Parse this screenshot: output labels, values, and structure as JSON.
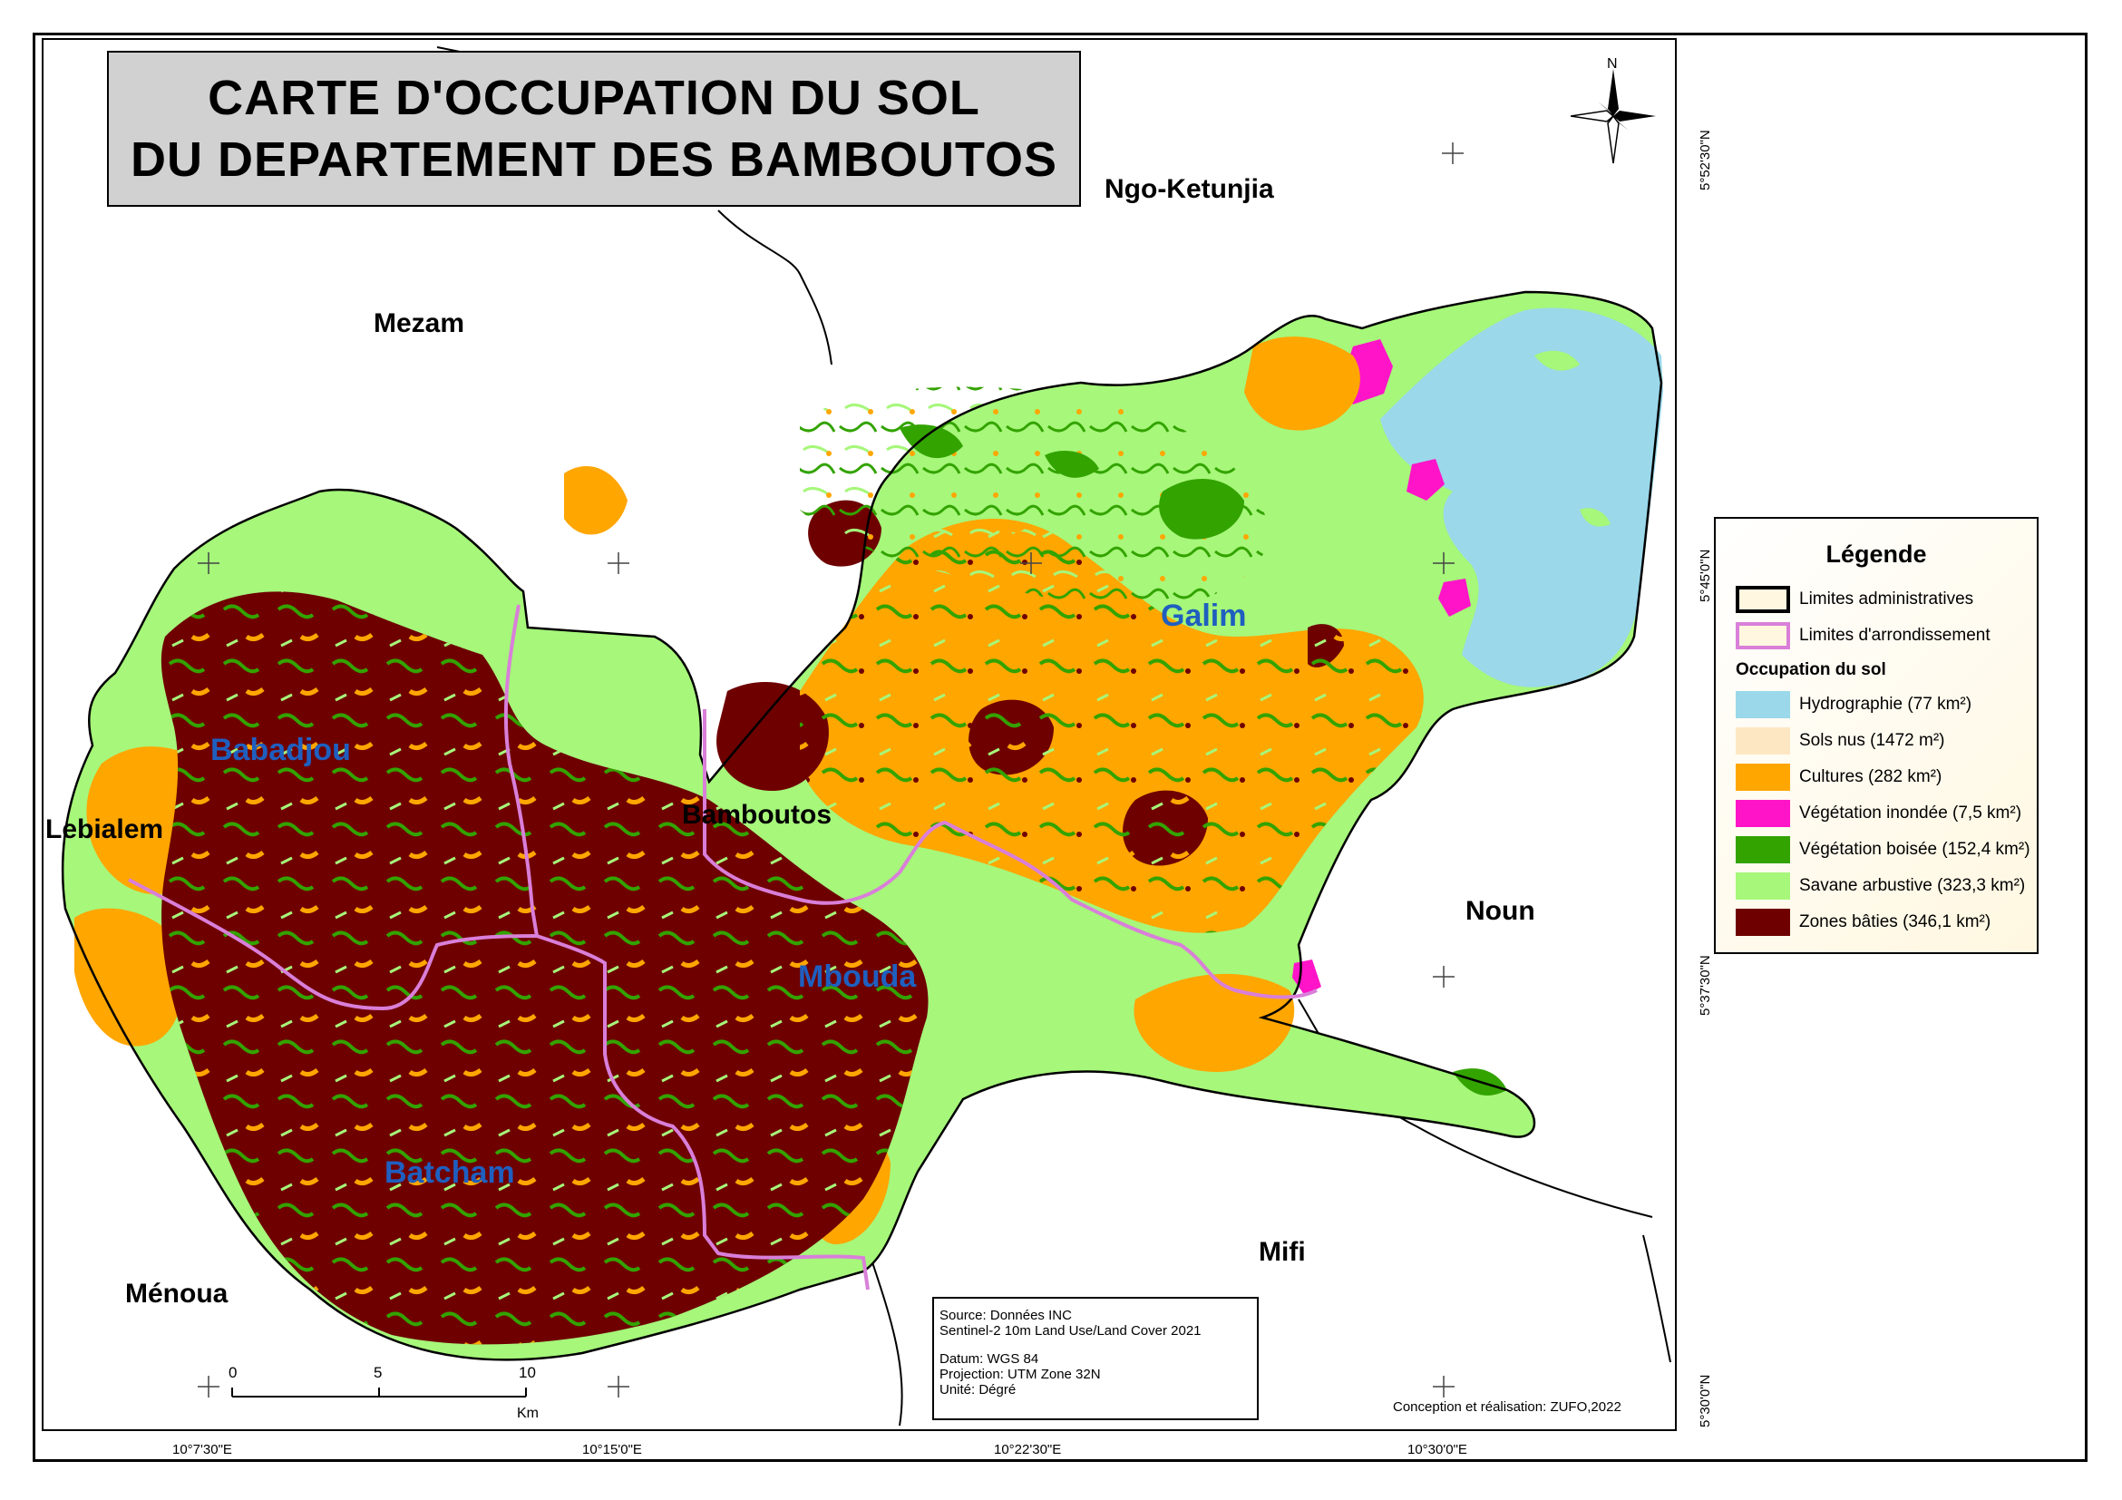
{
  "title": {
    "line1": "CARTE D'OCCUPATION DU SOL",
    "line2": "DU DEPARTEMENT DES BAMBOUTOS"
  },
  "departments": {
    "ngo_ketunjia": "Ngo-Ketunjia",
    "mezam": "Mezam",
    "lebialem": "Lebialem",
    "bamboutos": "Bamboutos",
    "noun": "Noun",
    "mifi": "Mifi",
    "menoua": "Ménoua"
  },
  "arrondissements": {
    "galim": "Galim",
    "babadjou": "Babadjou",
    "mbouda": "Mbouda",
    "batcham": "Batcham"
  },
  "north_arrow": {
    "label": "N",
    "icon": "compass-rose-icon"
  },
  "graticule": {
    "longitudes": [
      "10°7'30\"E",
      "10°15'0\"E",
      "10°22'30\"E",
      "10°30'0\"E"
    ],
    "latitudes": [
      "5°52'30\"N",
      "5°45'0\"N",
      "5°37'30\"N",
      "5°30'0\"N"
    ]
  },
  "legend": {
    "title": "Légende",
    "boundaries": [
      {
        "label": "Limites administratives",
        "color": "#000000"
      },
      {
        "label": "Limites d'arrondissement",
        "color": "#d97fd9"
      }
    ],
    "land_use_title": "Occupation du sol",
    "classes": [
      {
        "label": "Hydrographie (77 km²)",
        "color": "#9ad8ea"
      },
      {
        "label": "Sols nus (1472 m²)",
        "color": "#fde7c3"
      },
      {
        "label": "Cultures (282 km²)",
        "color": "#ffa600"
      },
      {
        "label": "Végétation inondée (7,5 km²)",
        "color": "#ff14c8"
      },
      {
        "label": "Végétation boisée (152,4 km²)",
        "color": "#33a300"
      },
      {
        "label": "Savane arbustive (323,3 km²)",
        "color": "#a6f77a"
      },
      {
        "label": "Zones bâties (346,1 km²)",
        "color": "#6e0000"
      }
    ]
  },
  "scale_bar": {
    "ticks": [
      "0",
      "5",
      "10"
    ],
    "unit": "Km"
  },
  "source": {
    "line1": "Source: Données INC",
    "line2": "Sentinel-2 10m Land Use/Land Cover 2021",
    "line3": "Datum: WGS 84",
    "line4": "Projection: UTM Zone 32N",
    "line5": "Unité: Dégré"
  },
  "credit": "Conception et réalisation: ZUFO,2022"
}
